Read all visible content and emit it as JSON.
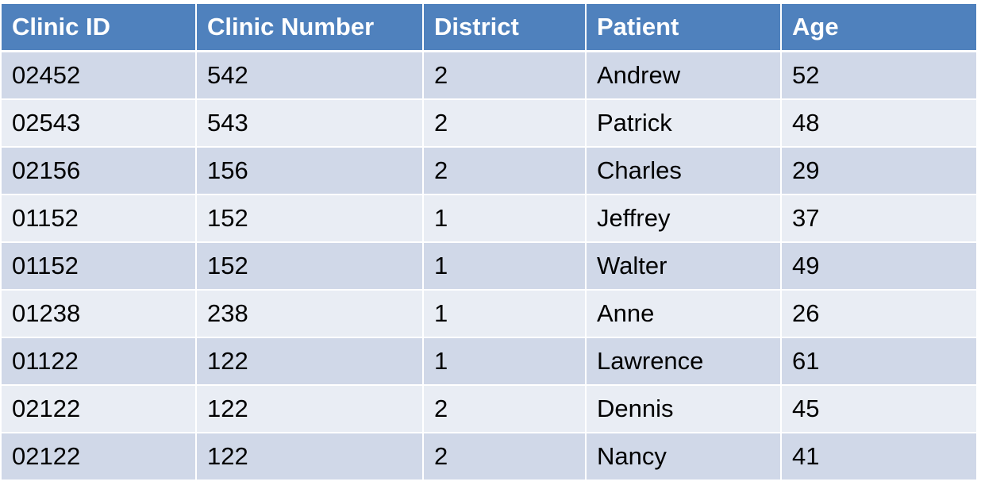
{
  "table": {
    "headers": [
      "Clinic ID",
      "Clinic Number",
      "District",
      "Patient",
      "Age"
    ],
    "rows": [
      [
        "02452",
        "542",
        "2",
        "Andrew",
        "52"
      ],
      [
        "02543",
        "543",
        "2",
        "Patrick",
        "48"
      ],
      [
        "02156",
        "156",
        "2",
        "Charles",
        "29"
      ],
      [
        "01152",
        "152",
        "1",
        "Jeffrey",
        "37"
      ],
      [
        "01152",
        "152",
        "1",
        "Walter",
        "49"
      ],
      [
        "01238",
        "238",
        "1",
        "Anne",
        "26"
      ],
      [
        "01122",
        "122",
        "1",
        "Lawrence",
        "61"
      ],
      [
        "02122",
        "122",
        "2",
        "Dennis",
        "45"
      ],
      [
        "02122",
        "122",
        "2",
        "Nancy",
        "41"
      ]
    ]
  },
  "colors": {
    "header_bg": "#4f81bd",
    "row_odd_bg": "#d0d8e8",
    "row_even_bg": "#e9edf4"
  }
}
